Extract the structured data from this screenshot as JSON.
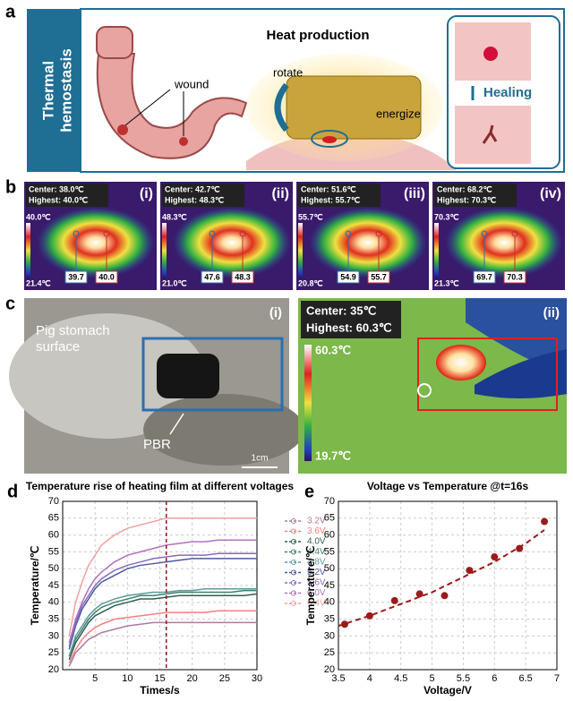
{
  "panels": {
    "a": {
      "label": "a",
      "side_label": [
        "Thermal",
        "hemostasis"
      ],
      "title": "Heat production",
      "wound": "wound",
      "rotate": "rotate",
      "energize": "energize",
      "healing": "Healing"
    },
    "b": {
      "label": "b",
      "images": [
        {
          "index": "(i)",
          "center": "Center: 38.0℃",
          "highest": "Highest: 40.0℃",
          "max": "40.0℃",
          "min": "21.4℃",
          "spot1": "39.7",
          "spot2": "40.0"
        },
        {
          "index": "(ii)",
          "center": "Center: 42.7℃",
          "highest": "Highest: 48.3℃",
          "max": "48.3℃",
          "min": "21.0℃",
          "spot1": "47.6",
          "spot2": "48.3"
        },
        {
          "index": "(iii)",
          "center": "Center: 51.6℃",
          "highest": "Highest: 55.7℃",
          "max": "55.7℃",
          "min": "20.8℃",
          "spot1": "54.9",
          "spot2": "55.7"
        },
        {
          "index": "(iv)",
          "center": "Center: 68.2℃",
          "highest": "Highest: 70.3℃",
          "max": "70.3℃",
          "min": "21.3℃",
          "spot1": "69.7",
          "spot2": "70.3"
        }
      ]
    },
    "c": {
      "label": "c",
      "left_index": "(i)",
      "surface": [
        "Pig stomach",
        "surface"
      ],
      "pbr": "PBR",
      "scale": "1cm",
      "right_index": "(ii)",
      "center": "Center: 35℃",
      "highest": "Highest: 60.3℃",
      "max": "60.3℃",
      "min": "19.7℃"
    }
  },
  "chart_data": [
    {
      "type": "line",
      "panel": "d",
      "title": "Temperature rise of heating film at different voltages",
      "xlabel": "Times/s",
      "ylabel": "Temperature/℃",
      "x": [
        1,
        2,
        3,
        4,
        5,
        6,
        8,
        10,
        12,
        14,
        16,
        18,
        20,
        22,
        24,
        26,
        28,
        30
      ],
      "xlim": [
        0,
        30
      ],
      "xticks": [
        5,
        10,
        15,
        20,
        25,
        30
      ],
      "ylim": [
        20,
        70
      ],
      "yticks": [
        20,
        25,
        30,
        35,
        40,
        45,
        50,
        55,
        60,
        65,
        70
      ],
      "grid": true,
      "vline": 16,
      "vline_color": "#8b1a1a",
      "series": [
        {
          "name": "3.2V",
          "color": "#b07aa1",
          "values": [
            21,
            25,
            27,
            29,
            30,
            31,
            32,
            33,
            33.5,
            34,
            34,
            34,
            34,
            34,
            34,
            34,
            34,
            34
          ]
        },
        {
          "name": "3.6V",
          "color": "#f08080",
          "values": [
            22,
            26,
            29,
            31,
            32.5,
            33.5,
            35,
            35.5,
            36,
            36.5,
            37,
            37,
            37,
            37,
            37.5,
            37.5,
            37.5,
            37.5
          ]
        },
        {
          "name": "4.0V",
          "color": "#2f5f4f",
          "values": [
            23,
            28,
            31,
            34,
            36,
            37,
            39,
            40,
            41,
            41,
            41.5,
            42,
            42,
            42,
            42,
            42,
            42,
            42.5
          ]
        },
        {
          "name": "4.4V",
          "color": "#3f7f6f",
          "values": [
            24,
            29,
            32,
            35,
            37,
            38.5,
            40,
            41,
            42,
            42,
            42.5,
            43,
            43,
            43,
            43,
            43,
            43.5,
            43.5
          ]
        },
        {
          "name": "4.8V",
          "color": "#5a9a9a",
          "values": [
            24,
            30,
            33,
            36,
            38,
            39.5,
            41,
            42,
            42.5,
            43,
            43,
            43.5,
            43.5,
            44,
            44,
            44,
            44,
            44
          ]
        },
        {
          "name": "5.2V",
          "color": "#4a5aa0",
          "values": [
            26,
            33,
            38,
            41,
            44,
            46,
            48,
            50,
            51,
            51.5,
            52,
            52.5,
            53,
            53,
            53,
            53,
            53,
            53
          ]
        },
        {
          "name": "5.6V",
          "color": "#8a6ab8",
          "values": [
            27,
            34,
            39,
            42,
            45,
            47,
            49.5,
            51,
            52,
            53,
            53.5,
            54,
            54,
            54,
            54.5,
            54.5,
            54.5,
            54.5
          ]
        },
        {
          "name": "6.0V",
          "color": "#b070c0",
          "values": [
            28,
            35,
            40,
            44,
            47,
            49,
            52,
            54,
            55,
            56,
            57,
            57.5,
            58,
            58,
            58.5,
            58.5,
            58.5,
            58.5
          ]
        },
        {
          "name": "6.4V",
          "color": "#f0a0a0",
          "values": [
            30,
            40,
            46,
            51,
            54,
            57,
            60,
            62,
            63,
            64,
            65,
            65,
            65,
            65,
            65,
            65,
            65,
            65
          ]
        }
      ]
    },
    {
      "type": "scatter",
      "panel": "e",
      "title": "Voltage vs Temperature @t=16s",
      "xlabel": "Voltage/V",
      "ylabel": "Temperature/℃",
      "x": [
        3.6,
        4.0,
        4.4,
        4.8,
        5.2,
        5.6,
        6.0,
        6.4,
        6.8
      ],
      "values": [
        33.5,
        36,
        40.5,
        42.5,
        42,
        49.5,
        53.5,
        56,
        64
      ],
      "color": "#9b1b1b",
      "trendline": {
        "x": [
          3.5,
          4,
          4.5,
          5,
          5.5,
          6,
          6.5,
          6.8
        ],
        "values": [
          33,
          36,
          39.5,
          43,
          47.5,
          52,
          57.5,
          61.5
        ]
      },
      "xlim": [
        3.5,
        7
      ],
      "xticks": [
        3.5,
        4,
        4.5,
        5,
        5.5,
        6,
        6.5,
        7
      ],
      "ylim": [
        20,
        70
      ],
      "yticks": [
        20,
        25,
        30,
        35,
        40,
        45,
        50,
        55,
        60,
        65,
        70
      ],
      "grid": true
    }
  ]
}
